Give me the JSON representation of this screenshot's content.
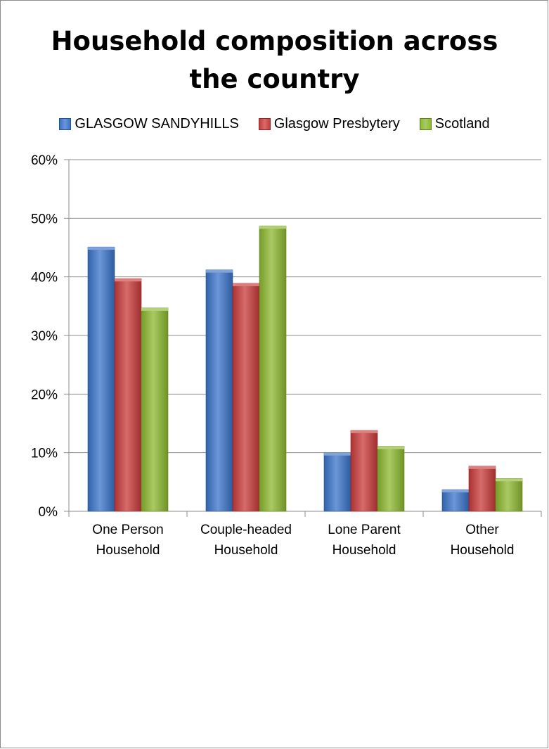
{
  "chart_data": {
    "type": "bar",
    "title": "Household composition across\nthe country",
    "categories": [
      [
        "One Person",
        "Household"
      ],
      [
        "Couple-headed",
        "Household"
      ],
      [
        "Lone Parent",
        "Household"
      ],
      [
        "Other",
        "Household"
      ]
    ],
    "series": [
      {
        "name": "GLASGOW SANDYHILLS",
        "color": "#3a73c9",
        "values": [
          45.1,
          41.2,
          10.0,
          3.7
        ]
      },
      {
        "name": "Glasgow Presbytery",
        "color": "#c93a3a",
        "values": [
          39.7,
          38.9,
          13.8,
          7.7
        ]
      },
      {
        "name": "Scotland",
        "color": "#8cb82f",
        "values": [
          34.7,
          48.7,
          11.1,
          5.6
        ]
      }
    ],
    "ylim": [
      0,
      60
    ],
    "yticks": [
      "0%",
      "10%",
      "20%",
      "30%",
      "40%",
      "50%",
      "60%"
    ],
    "grid": true,
    "legend_position": "top"
  }
}
